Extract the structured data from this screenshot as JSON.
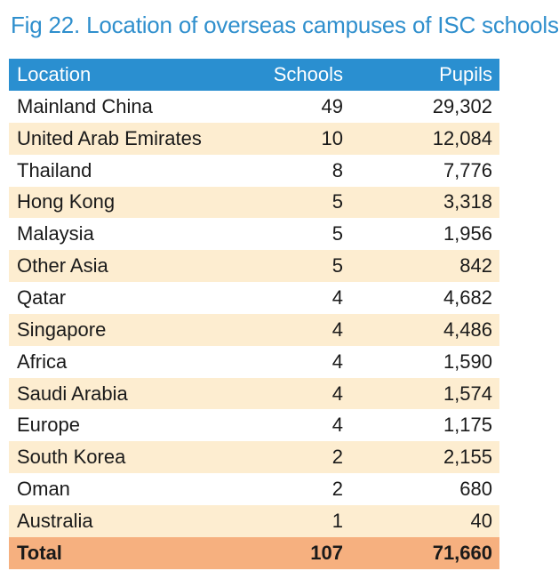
{
  "title": "Fig 22. Location of overseas campuses of ISC schools",
  "colors": {
    "title": "#2f8fcd",
    "header_bg": "#2a8fd0",
    "row_stripe": "#fdedd0",
    "total_bg": "#f6b07f"
  },
  "chart_data": {
    "type": "table",
    "title": "Fig 22. Location of overseas campuses of ISC schools",
    "columns": [
      "Location",
      "Schools",
      "Pupils"
    ],
    "rows": [
      {
        "location": "Mainland China",
        "schools": "49",
        "pupils": "29,302"
      },
      {
        "location": "United Arab Emirates",
        "schools": "10",
        "pupils": "12,084"
      },
      {
        "location": "Thailand",
        "schools": "8",
        "pupils": "7,776"
      },
      {
        "location": "Hong Kong",
        "schools": "5",
        "pupils": "3,318"
      },
      {
        "location": "Malaysia",
        "schools": "5",
        "pupils": "1,956"
      },
      {
        "location": "Other Asia",
        "schools": "5",
        "pupils": "842"
      },
      {
        "location": "Qatar",
        "schools": "4",
        "pupils": "4,682"
      },
      {
        "location": "Singapore",
        "schools": "4",
        "pupils": "4,486"
      },
      {
        "location": "Africa",
        "schools": "4",
        "pupils": "1,590"
      },
      {
        "location": "Saudi Arabia",
        "schools": "4",
        "pupils": "1,574"
      },
      {
        "location": "Europe",
        "schools": "4",
        "pupils": "1,175"
      },
      {
        "location": "South Korea",
        "schools": "2",
        "pupils": "2,155"
      },
      {
        "location": "Oman",
        "schools": "2",
        "pupils": "680"
      },
      {
        "location": "Australia",
        "schools": "1",
        "pupils": "40"
      }
    ],
    "total": {
      "label": "Total",
      "schools": "107",
      "pupils": "71,660"
    }
  }
}
